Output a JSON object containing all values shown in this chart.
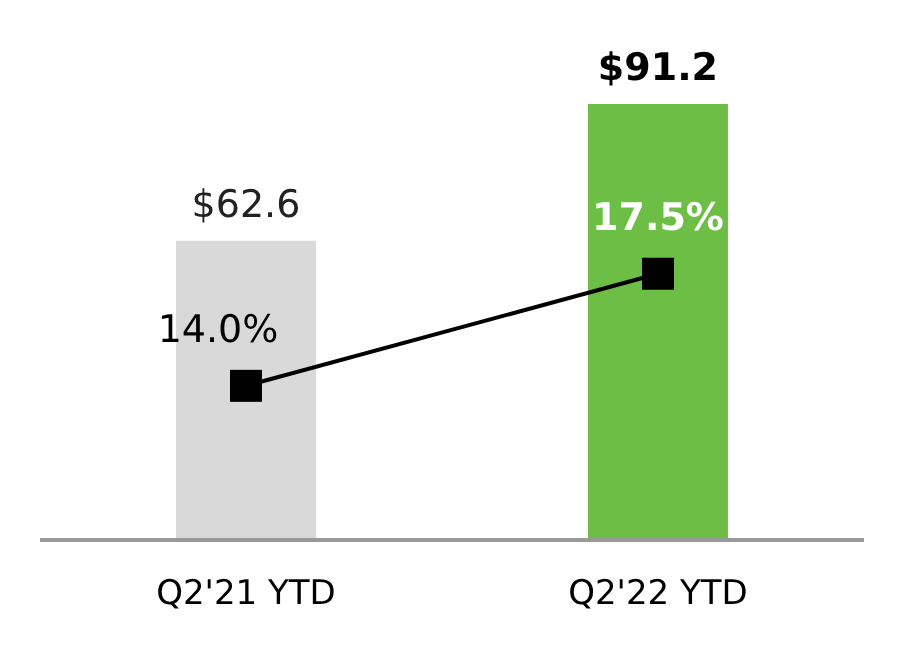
{
  "chart_data": {
    "type": "bar",
    "categories": [
      "Q2'21 YTD",
      "Q2'22 YTD"
    ],
    "tick_labels": "x",
    "series": [
      {
        "colors": [
          "#d9d9d9",
          "#6dbe45"
        ],
        "values": [
          62.6,
          91.2
        ],
        "value_labels": [
          "$62.6",
          "$91.2"
        ]
      },
      {
        "type": "line",
        "axis": "y2",
        "color": "#000000",
        "marker": "square",
        "line_style": "solid",
        "values": [
          14.0,
          17.5
        ],
        "value_labels": [
          "14.0%",
          "17.5%"
        ]
      }
    ]
  }
}
